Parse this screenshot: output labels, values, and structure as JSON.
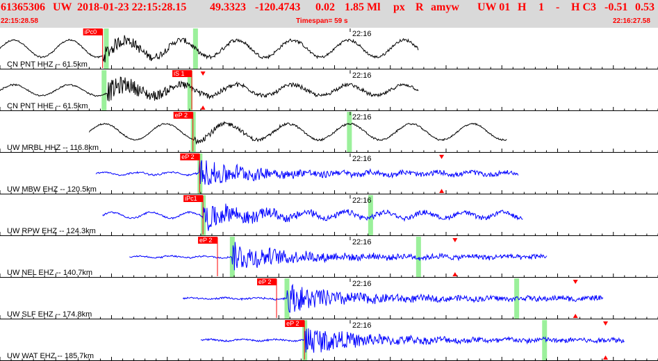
{
  "header": {
    "event_id": "61365306",
    "network": "UW",
    "datetime": "2018-01-23 22:15:28.15",
    "lat": "49.3323",
    "lon": "-120.4743",
    "depth": "0.02",
    "magnitude": "1.85 Ml",
    "flags": "px",
    "review": "R",
    "author": "amyw",
    "quality": "UW 01",
    "code_h": "H",
    "code_1": "1",
    "code_dash": "-",
    "code_hc3": "H C3",
    "val_a": "-0.51",
    "val_b": "0.53",
    "start_time": "22:15:28.58",
    "timespan": "Timespan=  59 s",
    "end_time": "22:16:27.58"
  },
  "colors": {
    "header_bg": "#d9d9d9",
    "header_text": "#ff0000",
    "pick_box": "#ff0000",
    "pick_text": "#ffffff",
    "pick_line": "#ff0000",
    "window": "#90ee90",
    "trace_hh": "#000000",
    "trace_eh": "#0000ff"
  },
  "time_marker": "22:16",
  "channels": [
    {
      "label": "CN PNT HHZ -- 61.5km",
      "pick": "iPc0",
      "color": "black",
      "start_s": 0.0,
      "end_s": 37.5,
      "onset_s": 9.2,
      "pick_s": 9.2,
      "windows_s": [
        9.5,
        17.5
      ],
      "amp": 0.8,
      "slow_period_s": 5.0,
      "slow_amp": 0.55,
      "burst_amp": 0.45,
      "tri_up_s": null,
      "tri_down_s": null
    },
    {
      "label": "CN PNT HHE -- 61.5km",
      "pick": "iS 1",
      "color": "black",
      "start_s": 0.0,
      "end_s": 37.5,
      "onset_s": 9.6,
      "pick_s": 17.2,
      "windows_s": [
        9.3,
        17.0
      ],
      "amp": 0.8,
      "slow_period_s": 5.0,
      "slow_amp": 0.35,
      "burst_amp": 0.6,
      "tri_up_s": 18.2,
      "tri_down_s": 18.2
    },
    {
      "label": "UW MRBL HHZ -- 116.8km",
      "pick": "eP 2",
      "color": "black",
      "start_s": 8.0,
      "end_s": 45.5,
      "onset_s": 17.3,
      "pick_s": 17.3,
      "windows_s": [
        17.3,
        31.3
      ],
      "amp": 0.75,
      "slow_period_s": 5.5,
      "slow_amp": 0.55,
      "burst_amp": 0.25,
      "tri_up_s": null,
      "tri_down_s": null
    },
    {
      "label": "UW MBW EHZ -- 120.5km",
      "pick": "eP 2",
      "color": "blue",
      "start_s": 8.6,
      "end_s": 46.5,
      "onset_s": 17.9,
      "pick_s": 17.9,
      "windows_s": [
        17.9
      ],
      "amp": 0.85,
      "slow_period_s": 3.0,
      "slow_amp": 0.08,
      "burst_amp": 0.75,
      "tri_up_s": 39.6,
      "tri_down_s": 39.6
    },
    {
      "label": "UW RPW EHZ -- 124.3km",
      "pick": "iPc1",
      "color": "blue",
      "start_s": 9.2,
      "end_s": 46.9,
      "onset_s": 18.2,
      "pick_s": 18.2,
      "windows_s": [
        18.2,
        33.2
      ],
      "amp": 0.85,
      "slow_period_s": 3.5,
      "slow_amp": 0.18,
      "burst_amp": 0.7,
      "tri_up_s": null,
      "tri_down_s": null
    },
    {
      "label": "UW NEL EHZ -- 140.7km",
      "pick": "eP 2",
      "color": "blue",
      "start_s": 11.6,
      "end_s": 49.1,
      "onset_s": 20.8,
      "pick_s": 19.5,
      "windows_s": [
        20.8,
        37.5
      ],
      "amp": 0.85,
      "slow_period_s": 3.0,
      "slow_amp": 0.05,
      "burst_amp": 0.8,
      "tri_up_s": 40.8,
      "tri_down_s": 40.8
    },
    {
      "label": "UW SLF EHZ -- 174.8km",
      "pick": "eP 2",
      "color": "blue",
      "start_s": 16.4,
      "end_s": 54.1,
      "onset_s": 25.7,
      "pick_s": 24.8,
      "windows_s": [
        25.7,
        46.3
      ],
      "amp": 0.85,
      "slow_period_s": 3.0,
      "slow_amp": 0.04,
      "burst_amp": 0.8,
      "tri_up_s": 51.6,
      "tri_down_s": 51.6
    },
    {
      "label": "UW WAT EHZ -- 185.7km",
      "pick": "eP 2",
      "color": "blue",
      "start_s": 18.0,
      "end_s": 56.0,
      "onset_s": 27.3,
      "pick_s": 27.3,
      "windows_s": [
        27.3,
        48.8
      ],
      "amp": 0.85,
      "slow_period_s": 3.0,
      "slow_amp": 0.05,
      "burst_amp": 0.8,
      "tri_up_s": 54.3,
      "tri_down_s": 54.3
    }
  ]
}
